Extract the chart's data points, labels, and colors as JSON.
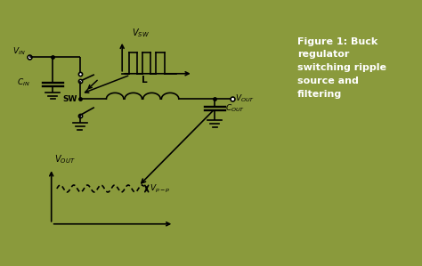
{
  "bg_color": "#8a9a3c",
  "left_panel_bg": "#ffffff",
  "right_panel_bg": "#8a9a3c",
  "figure_title": "Figure 1: Buck\nregulator\nswitching ripple\nsource and\nfiltering",
  "lw": 1.2,
  "border_color": "#8a9a3c",
  "border_lw": 4
}
